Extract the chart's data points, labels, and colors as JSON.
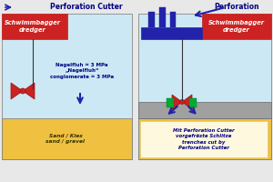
{
  "bg_color": "#e8e8e8",
  "panel_bg": "#cce8f4",
  "sand_color": "#f0c040",
  "hard_layer_color": "#a0a0a0",
  "dredger_color": "#cc2222",
  "machine_color": "#2222aa",
  "green_color": "#00aa33",
  "arrow_color": "#2222aa",
  "text_color_dark": "#000080",
  "white": "#ffffff",
  "title_left": "Perforation Cutter",
  "title_right": "Perforation",
  "label_dredger": "Schwimmbagger\ndredger",
  "label_nagelfluh": "Nagelfluh ≈ 3 MPa\n„Nagelfluh“\nconglomerate ≈ 3 MPa",
  "label_sand_left": "Sand / Kies\nsand / gravel",
  "label_right_box": "Mit Perforation Cutter\nvorgefräste Schlitze\ntrenches cut by\nPerforation Cutter",
  "label_dredger2": "Schwimmbagger\ndredger"
}
